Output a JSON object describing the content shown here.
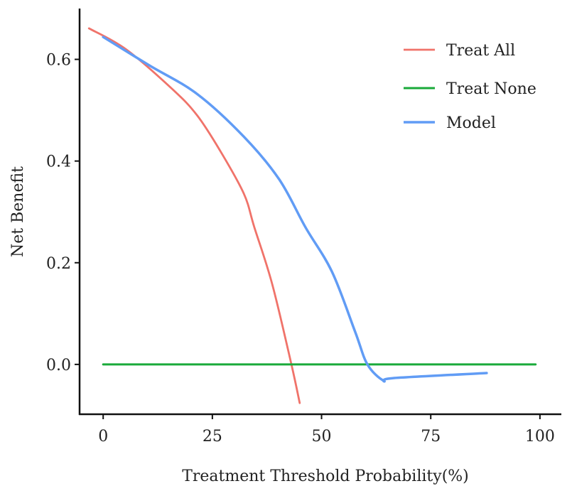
{
  "chart_data": {
    "type": "line",
    "title": "",
    "xlabel": "Treatment Threshold Probability(%)",
    "ylabel": "Net Benefit",
    "xlim": [
      -5.4,
      104.9
    ],
    "ylim": [
      -0.098,
      0.7
    ],
    "xticks": [
      0,
      25,
      50,
      75,
      100
    ],
    "xtick_labels": [
      "0",
      "25",
      "50",
      "75",
      "100"
    ],
    "yticks": [
      0,
      0.2,
      0.4,
      0.6
    ],
    "ytick_labels": [
      "0.0",
      "0.2",
      "0.4",
      "0.6"
    ],
    "grid": false,
    "legend_position": "top-right",
    "series": [
      {
        "name": "Treat All",
        "color": "#f0736a",
        "x": [
          -3.25,
          5.2,
          15.9,
          21.5,
          26.8,
          32.2,
          34.6,
          38.7,
          43.1,
          45.0
        ],
        "y": [
          0.661,
          0.62,
          0.541,
          0.49,
          0.42,
          0.336,
          0.27,
          0.158,
          0.0,
          -0.076
        ]
      },
      {
        "name": "Treat None",
        "color": "#1aaa3a",
        "x": [
          0,
          99
        ],
        "y": [
          0,
          0
        ]
      },
      {
        "name": "Model",
        "color": "#619cf5",
        "x": [
          0,
          10.6,
          21.5,
          32.2,
          40.3,
          46.3,
          52.4,
          57.7,
          60.5,
          64.2,
          66.3,
          87.8
        ],
        "y": [
          0.644,
          0.588,
          0.532,
          0.448,
          0.364,
          0.27,
          0.182,
          0.064,
          0.0,
          -0.032,
          -0.027,
          -0.017
        ]
      }
    ]
  }
}
